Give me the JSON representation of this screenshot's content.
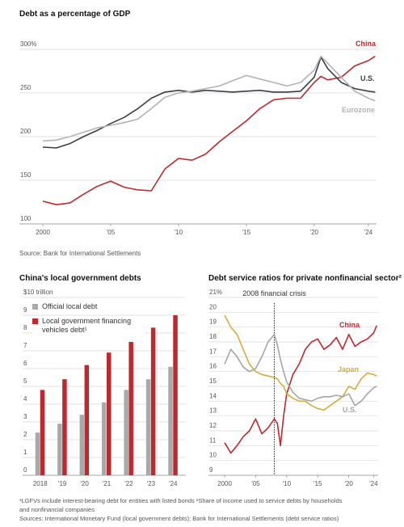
{
  "chart_data": [
    {
      "type": "line",
      "title": "Debt as a percentage of GDP",
      "source": "Source: Bank for International Settlements",
      "x": [
        2000,
        2001,
        2002,
        2003,
        2004,
        2005,
        2006,
        2007,
        2008,
        2009,
        2010,
        2011,
        2012,
        2013,
        2014,
        2015,
        2016,
        2017,
        2018,
        2019,
        2020,
        2020.5,
        2021,
        2022,
        2023,
        2024,
        2024.5
      ],
      "xlim": [
        2000,
        2024.6
      ],
      "xticks": [
        2000,
        {
          "value": 2005,
          "label": "'05"
        },
        {
          "value": 2010,
          "label": "'10"
        },
        {
          "value": 2015,
          "label": "'15"
        },
        {
          "value": 2020,
          "label": "'20"
        },
        {
          "value": 2024,
          "label": "'24"
        }
      ],
      "ylim": [
        100,
        300
      ],
      "yticks": [
        100,
        150,
        200,
        250,
        {
          "value": 300,
          "label": "300%"
        }
      ],
      "grid": true,
      "series": [
        {
          "name": "China",
          "color": "#c0282e",
          "values": [
            126,
            122,
            124,
            134,
            143,
            149,
            142,
            139,
            138,
            163,
            175,
            173,
            180,
            194,
            206,
            218,
            232,
            242,
            244,
            244,
            262,
            269,
            265,
            268,
            281,
            287,
            292
          ]
        },
        {
          "name": "U.S.",
          "color": "#3d3d45",
          "values": [
            188,
            187,
            192,
            200,
            207,
            215,
            222,
            232,
            244,
            251,
            253,
            251,
            253,
            252,
            251,
            252,
            253,
            251,
            251,
            252,
            268,
            291,
            278,
            262,
            255,
            252,
            251
          ]
        },
        {
          "name": "Eurozone",
          "color": "#b3b3b3",
          "values": [
            195,
            196,
            200,
            205,
            210,
            213,
            216,
            220,
            232,
            245,
            250,
            252,
            255,
            258,
            264,
            270,
            266,
            262,
            258,
            262,
            276,
            292,
            284,
            268,
            252,
            244,
            241
          ]
        }
      ]
    },
    {
      "type": "bar",
      "title": "China's local government debts",
      "categories": [
        "2018",
        "'19",
        "'20",
        "'21",
        "'22",
        "'23",
        "'24"
      ],
      "ylim": [
        0,
        10
      ],
      "yticks": [
        0,
        1,
        2,
        3,
        4,
        5,
        6,
        7,
        8,
        9,
        {
          "value": 10,
          "label": "$10 trillion"
        }
      ],
      "grid": true,
      "series": [
        {
          "name": "Official local debt",
          "color": "#a9a9a9",
          "values": [
            2.4,
            2.9,
            3.4,
            4.1,
            4.8,
            5.4,
            6.1
          ]
        },
        {
          "name": "Local government financing vehicles debt¹",
          "color": "#c0282e",
          "values": [
            4.8,
            5.4,
            6.2,
            6.9,
            7.5,
            8.3,
            9.0
          ]
        }
      ]
    },
    {
      "type": "line",
      "title": "Debt service ratios for private nonfinancial sector²",
      "x": [
        2000,
        2001,
        2002,
        2003,
        2004,
        2005,
        2006,
        2007,
        2008,
        2008.5,
        2009,
        2009.5,
        2010,
        2011,
        2012,
        2013,
        2014,
        2015,
        2016,
        2017,
        2018,
        2019,
        2020,
        2021,
        2022,
        2023,
        2024,
        2024.5
      ],
      "xlim": [
        2000,
        2024.6
      ],
      "xticks": [
        2000,
        {
          "value": 2005,
          "label": "'05"
        },
        {
          "value": 2010,
          "label": "'10"
        },
        {
          "value": 2015,
          "label": "'15"
        },
        {
          "value": 2020,
          "label": "'20"
        },
        {
          "value": 2024,
          "label": "'24"
        }
      ],
      "ylim": [
        9,
        21
      ],
      "yticks": [
        9,
        10,
        11,
        12,
        13,
        14,
        15,
        16,
        17,
        18,
        19,
        20,
        {
          "value": 21,
          "label": "21%"
        }
      ],
      "grid": true,
      "annotations": [
        {
          "text": "2008 financial crisis",
          "x": 2008
        }
      ],
      "series": [
        {
          "name": "China",
          "color": "#c0282e",
          "values": [
            11.2,
            10.5,
            11.0,
            11.6,
            12.0,
            12.8,
            11.8,
            12.2,
            12.8,
            12.5,
            11.0,
            13.0,
            14.5,
            15.8,
            16.5,
            17.5,
            18.0,
            18.2,
            17.5,
            17.8,
            18.3,
            17.5,
            18.5,
            17.7,
            18.0,
            18.2,
            18.6,
            19.1
          ]
        },
        {
          "name": "Japan",
          "color": "#d4ad3c",
          "values": [
            19.8,
            19.0,
            18.5,
            17.5,
            16.5,
            16.0,
            15.8,
            15.7,
            15.6,
            15.5,
            15.2,
            15.0,
            14.5,
            14.2,
            14.0,
            14.0,
            13.7,
            13.5,
            13.4,
            13.7,
            14.0,
            14.3,
            15.0,
            14.8,
            15.5,
            15.9,
            15.8,
            15.7
          ]
        },
        {
          "name": "U.S.",
          "color": "#a6a6a6",
          "values": [
            16.5,
            17.5,
            17.0,
            16.3,
            16.0,
            16.2,
            17.0,
            18.0,
            18.5,
            17.8,
            16.8,
            16.0,
            15.3,
            14.6,
            14.2,
            14.1,
            14.0,
            14.2,
            14.3,
            14.3,
            14.4,
            14.3,
            14.5,
            13.7,
            14.0,
            14.5,
            14.9,
            15.0
          ]
        }
      ]
    }
  ],
  "notes": [
    "¹LGFVs include interest-bearing debt for entities with listed bonds   ²Share of income used to service debts by households",
    "and nonfinancial companies",
    "Sources: International Monetary Fund (local government debts); Bank for International Settlements (debt service ratios)"
  ]
}
